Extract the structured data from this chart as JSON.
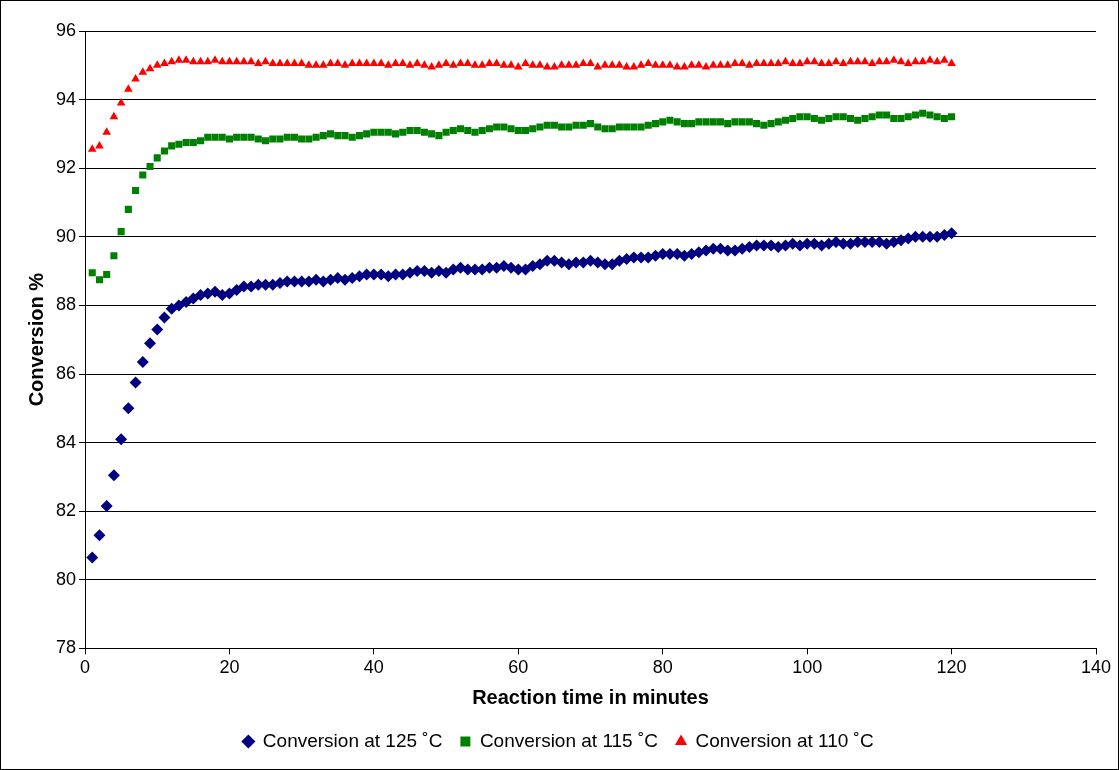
{
  "chart_data": {
    "type": "scatter",
    "xlabel": "Reaction time in minutes",
    "ylabel": "Conversion %",
    "x": [
      1,
      2,
      3,
      4,
      5,
      6,
      7,
      8,
      9,
      10,
      11,
      12,
      13,
      14,
      15,
      16,
      17,
      18,
      19,
      20,
      21,
      22,
      23,
      24,
      25,
      26,
      27,
      28,
      29,
      30,
      31,
      32,
      33,
      34,
      35,
      36,
      37,
      38,
      39,
      40,
      41,
      42,
      43,
      44,
      45,
      46,
      47,
      48,
      49,
      50,
      51,
      52,
      53,
      54,
      55,
      56,
      57,
      58,
      59,
      60,
      61,
      62,
      63,
      64,
      65,
      66,
      67,
      68,
      69,
      70,
      71,
      72,
      73,
      74,
      75,
      76,
      77,
      78,
      79,
      80,
      81,
      82,
      83,
      84,
      85,
      86,
      87,
      88,
      89,
      90,
      91,
      92,
      93,
      94,
      95,
      96,
      97,
      98,
      99,
      100,
      101,
      102,
      103,
      104,
      105,
      106,
      107,
      108,
      109,
      110,
      111,
      112,
      113,
      114,
      115,
      116,
      117,
      118,
      119,
      120
    ],
    "series": [
      {
        "name": "Conversion at 125 ˚C",
        "color": "#000080",
        "marker": "diamond",
        "values": [
          80.65,
          81.3,
          82.15,
          83.05,
          84.1,
          85.0,
          85.75,
          86.35,
          86.9,
          87.3,
          87.65,
          87.9,
          88.0,
          88.1,
          88.2,
          88.3,
          88.35,
          88.4,
          88.3,
          88.35,
          88.45,
          88.55,
          88.55,
          88.6,
          88.6,
          88.6,
          88.65,
          88.7,
          88.7,
          88.7,
          88.7,
          88.75,
          88.7,
          88.75,
          88.8,
          88.75,
          88.8,
          88.85,
          88.9,
          88.9,
          88.9,
          88.85,
          88.9,
          88.9,
          88.95,
          89.0,
          89.0,
          88.95,
          89.0,
          88.95,
          89.05,
          89.1,
          89.05,
          89.05,
          89.05,
          89.1,
          89.1,
          89.15,
          89.1,
          89.05,
          89.05,
          89.15,
          89.2,
          89.3,
          89.3,
          89.25,
          89.2,
          89.25,
          89.25,
          89.3,
          89.25,
          89.2,
          89.2,
          89.3,
          89.35,
          89.4,
          89.4,
          89.4,
          89.45,
          89.5,
          89.5,
          89.5,
          89.45,
          89.5,
          89.55,
          89.6,
          89.65,
          89.65,
          89.6,
          89.6,
          89.65,
          89.7,
          89.75,
          89.75,
          89.75,
          89.7,
          89.75,
          89.8,
          89.75,
          89.8,
          89.8,
          89.75,
          89.8,
          89.85,
          89.8,
          89.8,
          89.85,
          89.85,
          89.85,
          89.85,
          89.8,
          89.85,
          89.9,
          89.95,
          90.0,
          90.0,
          90.0,
          90.0,
          90.05,
          90.1
        ]
      },
      {
        "name": "Conversion at 115 ˚C",
        "color": "#008000",
        "marker": "square",
        "values": [
          88.95,
          88.75,
          88.9,
          89.45,
          90.15,
          90.8,
          91.35,
          91.8,
          92.05,
          92.3,
          92.5,
          92.65,
          92.7,
          92.75,
          92.75,
          92.8,
          92.9,
          92.9,
          92.9,
          92.85,
          92.9,
          92.9,
          92.9,
          92.85,
          92.8,
          92.85,
          92.85,
          92.9,
          92.9,
          92.85,
          92.85,
          92.9,
          92.95,
          93.0,
          92.95,
          92.95,
          92.9,
          92.95,
          93.0,
          93.05,
          93.05,
          93.05,
          93.0,
          93.05,
          93.1,
          93.1,
          93.05,
          93.0,
          92.95,
          93.05,
          93.1,
          93.15,
          93.1,
          93.05,
          93.1,
          93.15,
          93.2,
          93.2,
          93.15,
          93.1,
          93.1,
          93.15,
          93.2,
          93.25,
          93.25,
          93.2,
          93.2,
          93.25,
          93.25,
          93.3,
          93.2,
          93.15,
          93.15,
          93.2,
          93.2,
          93.2,
          93.2,
          93.25,
          93.3,
          93.35,
          93.4,
          93.35,
          93.3,
          93.3,
          93.35,
          93.35,
          93.35,
          93.35,
          93.3,
          93.35,
          93.35,
          93.35,
          93.3,
          93.25,
          93.3,
          93.35,
          93.4,
          93.45,
          93.5,
          93.5,
          93.45,
          93.4,
          93.45,
          93.5,
          93.5,
          93.45,
          93.4,
          93.45,
          93.5,
          93.55,
          93.55,
          93.45,
          93.45,
          93.5,
          93.55,
          93.6,
          93.55,
          93.5,
          93.45,
          93.5
        ]
      },
      {
        "name": "Conversion at 110 ˚C",
        "color": "#ff0000",
        "marker": "triangle",
        "values": [
          92.55,
          92.65,
          93.05,
          93.5,
          93.9,
          94.3,
          94.6,
          94.8,
          94.9,
          95.0,
          95.05,
          95.1,
          95.15,
          95.15,
          95.1,
          95.1,
          95.1,
          95.15,
          95.1,
          95.1,
          95.1,
          95.1,
          95.1,
          95.05,
          95.1,
          95.05,
          95.05,
          95.05,
          95.05,
          95.05,
          95.0,
          95.0,
          95.0,
          95.05,
          95.05,
          95.0,
          95.05,
          95.05,
          95.05,
          95.05,
          95.05,
          95.0,
          95.05,
          95.05,
          95.0,
          95.05,
          95.0,
          94.95,
          95.0,
          95.05,
          95.0,
          95.05,
          95.05,
          95.0,
          95.0,
          95.05,
          95.05,
          95.0,
          95.0,
          94.95,
          95.05,
          95.0,
          95.0,
          94.95,
          94.95,
          95.0,
          95.0,
          95.0,
          95.05,
          95.05,
          94.95,
          95.0,
          95.0,
          95.0,
          94.95,
          94.95,
          95.0,
          95.05,
          95.0,
          95.0,
          95.0,
          94.95,
          94.95,
          95.0,
          95.0,
          94.95,
          95.0,
          95.0,
          95.0,
          95.05,
          95.05,
          95.0,
          95.05,
          95.05,
          95.05,
          95.05,
          95.1,
          95.05,
          95.05,
          95.1,
          95.1,
          95.05,
          95.05,
          95.1,
          95.05,
          95.1,
          95.1,
          95.1,
          95.05,
          95.1,
          95.1,
          95.15,
          95.1,
          95.05,
          95.1,
          95.1,
          95.15,
          95.1,
          95.15,
          95.05
        ]
      }
    ],
    "xlim": [
      0,
      140
    ],
    "xticks": [
      0,
      20,
      40,
      60,
      80,
      100,
      120,
      140
    ],
    "ylim": [
      78,
      96
    ],
    "yticks": [
      78,
      80,
      82,
      84,
      86,
      88,
      90,
      92,
      94,
      96
    ],
    "grid": "y",
    "legend": "bottom"
  }
}
